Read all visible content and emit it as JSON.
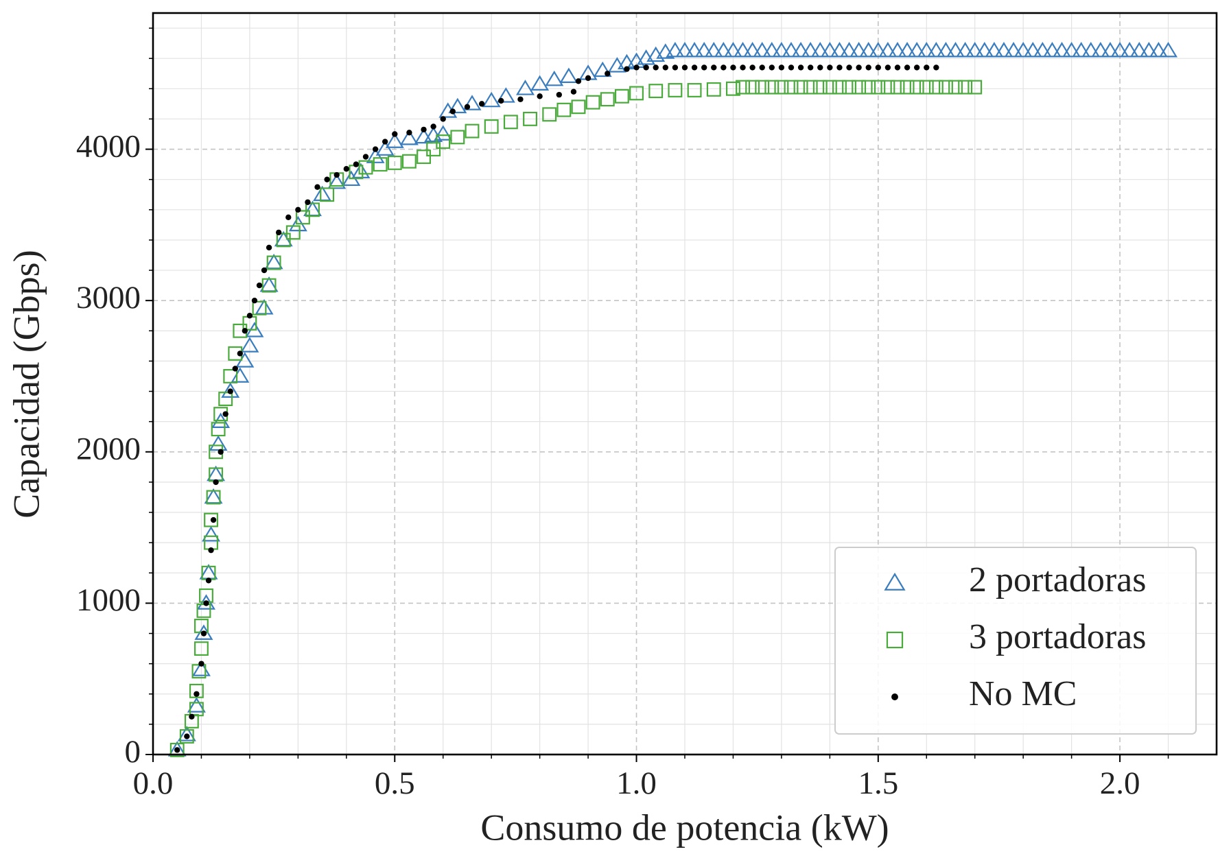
{
  "chart_data": {
    "type": "scatter",
    "xlabel": "Consumo de potencia (kW)",
    "ylabel": "Capacidad (Gbps)",
    "xlim": [
      0,
      2.2
    ],
    "ylim": [
      0,
      4900
    ],
    "xticks": [
      {
        "value": 0,
        "label": "0.0"
      },
      0.5,
      {
        "value": 1,
        "label": "1.0"
      },
      1.5,
      {
        "value": 2,
        "label": "2.0"
      }
    ],
    "yticks": [
      0,
      1000,
      2000,
      3000,
      4000
    ],
    "xminorticks": [
      0.1,
      0.2,
      0.3,
      0.4,
      0.6,
      0.7,
      0.8,
      0.9,
      1.1,
      1.2,
      1.3,
      1.4,
      1.6,
      1.7,
      1.8,
      1.9,
      2.1
    ],
    "yminorticks": [
      200,
      400,
      600,
      800,
      1200,
      1400,
      1600,
      1800,
      2200,
      2400,
      2600,
      2800,
      3200,
      3400,
      3600,
      3800,
      4200,
      4400,
      4600,
      4800
    ],
    "grid": true,
    "legend": "lower right",
    "series": [
      {
        "name": "2 portadoras",
        "color": "#3a7dbf",
        "marker": "triangle",
        "x": [
          0.05,
          0.07,
          0.09,
          0.1,
          0.105,
          0.11,
          0.115,
          0.12,
          0.125,
          0.13,
          0.135,
          0.14,
          0.16,
          0.18,
          0.19,
          0.2,
          0.21,
          0.23,
          0.24,
          0.25,
          0.27,
          0.3,
          0.33,
          0.35,
          0.38,
          0.41,
          0.43,
          0.46,
          0.48,
          0.5,
          0.53,
          0.56,
          0.58,
          0.6,
          0.61,
          0.63,
          0.66,
          0.7,
          0.73,
          0.77,
          0.8,
          0.83,
          0.86,
          0.9,
          0.93,
          0.96,
          0.98,
          1.0,
          1.02,
          1.04,
          1.06,
          1.08,
          1.1,
          1.12,
          1.14,
          1.16,
          1.18,
          1.2,
          1.22,
          1.24,
          1.26,
          1.28,
          1.3,
          1.32,
          1.34,
          1.36,
          1.38,
          1.4,
          1.42,
          1.44,
          1.46,
          1.48,
          1.5,
          1.52,
          1.54,
          1.56,
          1.58,
          1.6,
          1.62,
          1.64,
          1.66,
          1.68,
          1.7,
          1.72,
          1.74,
          1.76,
          1.78,
          1.8,
          1.82,
          1.84,
          1.86,
          1.88,
          1.9,
          1.92,
          1.94,
          1.96,
          1.98,
          2.0,
          2.02,
          2.04,
          2.06,
          2.08,
          2.1
        ],
        "values": [
          30,
          130,
          320,
          560,
          800,
          1000,
          1200,
          1450,
          1700,
          1850,
          2050,
          2200,
          2400,
          2500,
          2600,
          2700,
          2800,
          2950,
          3100,
          3250,
          3400,
          3500,
          3600,
          3700,
          3780,
          3800,
          3850,
          3950,
          4000,
          4050,
          4070,
          4080,
          4090,
          4100,
          4250,
          4280,
          4300,
          4320,
          4350,
          4400,
          4430,
          4460,
          4480,
          4500,
          4520,
          4550,
          4570,
          4580,
          4600,
          4620,
          4640,
          4650,
          4650,
          4650,
          4650,
          4650,
          4650,
          4650,
          4650,
          4650,
          4650,
          4650,
          4650,
          4650,
          4650,
          4650,
          4650,
          4650,
          4650,
          4650,
          4650,
          4650,
          4650,
          4650,
          4650,
          4650,
          4650,
          4650,
          4650,
          4650,
          4650,
          4650,
          4650,
          4650,
          4650,
          4650,
          4650,
          4650,
          4650,
          4650,
          4650,
          4650,
          4650,
          4650,
          4650,
          4650,
          4650,
          4650,
          4650,
          4650,
          4650,
          4650,
          4650
        ]
      },
      {
        "name": "3 portadoras",
        "color": "#4aab3c",
        "marker": "square",
        "x": [
          0.05,
          0.07,
          0.08,
          0.09,
          0.09,
          0.095,
          0.1,
          0.1,
          0.105,
          0.11,
          0.115,
          0.12,
          0.12,
          0.125,
          0.13,
          0.13,
          0.135,
          0.14,
          0.15,
          0.16,
          0.17,
          0.18,
          0.2,
          0.22,
          0.24,
          0.25,
          0.27,
          0.29,
          0.31,
          0.33,
          0.36,
          0.38,
          0.42,
          0.44,
          0.47,
          0.5,
          0.53,
          0.56,
          0.58,
          0.6,
          0.63,
          0.66,
          0.7,
          0.74,
          0.78,
          0.82,
          0.85,
          0.88,
          0.91,
          0.94,
          0.97,
          1.0,
          1.04,
          1.08,
          1.12,
          1.16,
          1.2,
          1.22,
          1.24,
          1.26,
          1.28,
          1.3,
          1.32,
          1.34,
          1.36,
          1.38,
          1.4,
          1.42,
          1.44,
          1.46,
          1.48,
          1.5,
          1.52,
          1.54,
          1.56,
          1.58,
          1.6,
          1.62,
          1.64,
          1.66,
          1.68,
          1.7
        ],
        "values": [
          30,
          120,
          220,
          300,
          420,
          550,
          700,
          850,
          950,
          1050,
          1200,
          1400,
          1550,
          1700,
          1850,
          2000,
          2150,
          2250,
          2350,
          2500,
          2650,
          2800,
          2850,
          2950,
          3100,
          3250,
          3400,
          3450,
          3550,
          3600,
          3700,
          3800,
          3850,
          3880,
          3900,
          3910,
          3920,
          3950,
          4000,
          4050,
          4080,
          4120,
          4150,
          4180,
          4200,
          4230,
          4260,
          4280,
          4310,
          4330,
          4350,
          4370,
          4385,
          4390,
          4390,
          4395,
          4400,
          4410,
          4410,
          4410,
          4410,
          4410,
          4410,
          4410,
          4410,
          4410,
          4410,
          4410,
          4410,
          4410,
          4410,
          4410,
          4410,
          4410,
          4410,
          4410,
          4410,
          4410,
          4410,
          4410,
          4410,
          4410
        ]
      },
      {
        "name": "No MC",
        "color": "#000000",
        "marker": "circle",
        "x": [
          0.05,
          0.07,
          0.08,
          0.09,
          0.1,
          0.105,
          0.11,
          0.115,
          0.12,
          0.125,
          0.13,
          0.14,
          0.15,
          0.16,
          0.17,
          0.18,
          0.19,
          0.2,
          0.21,
          0.22,
          0.23,
          0.24,
          0.26,
          0.28,
          0.3,
          0.32,
          0.34,
          0.36,
          0.38,
          0.4,
          0.42,
          0.44,
          0.46,
          0.48,
          0.5,
          0.53,
          0.56,
          0.58,
          0.6,
          0.62,
          0.65,
          0.68,
          0.72,
          0.76,
          0.8,
          0.84,
          0.87,
          0.88,
          0.9,
          0.94,
          0.98,
          1.0,
          1.02,
          1.04,
          1.06,
          1.08,
          1.1,
          1.12,
          1.14,
          1.16,
          1.18,
          1.2,
          1.22,
          1.24,
          1.26,
          1.28,
          1.3,
          1.32,
          1.34,
          1.36,
          1.38,
          1.4,
          1.42,
          1.44,
          1.46,
          1.48,
          1.5,
          1.52,
          1.54,
          1.56,
          1.58,
          1.6,
          1.62
        ],
        "values": [
          30,
          120,
          250,
          400,
          600,
          800,
          1000,
          1150,
          1350,
          1550,
          1800,
          2000,
          2250,
          2400,
          2550,
          2650,
          2800,
          2900,
          3000,
          3100,
          3200,
          3350,
          3450,
          3550,
          3600,
          3650,
          3750,
          3800,
          3830,
          3870,
          3900,
          3950,
          4000,
          4050,
          4100,
          4110,
          4130,
          4150,
          4200,
          4250,
          4280,
          4300,
          4320,
          4330,
          4350,
          4360,
          4380,
          4450,
          4470,
          4500,
          4530,
          4540,
          4540,
          4540,
          4540,
          4540,
          4540,
          4540,
          4540,
          4540,
          4540,
          4540,
          4540,
          4540,
          4540,
          4540,
          4540,
          4540,
          4540,
          4540,
          4540,
          4540,
          4540,
          4540,
          4540,
          4540,
          4540,
          4540,
          4540,
          4540,
          4540,
          4540,
          4540
        ]
      }
    ]
  }
}
